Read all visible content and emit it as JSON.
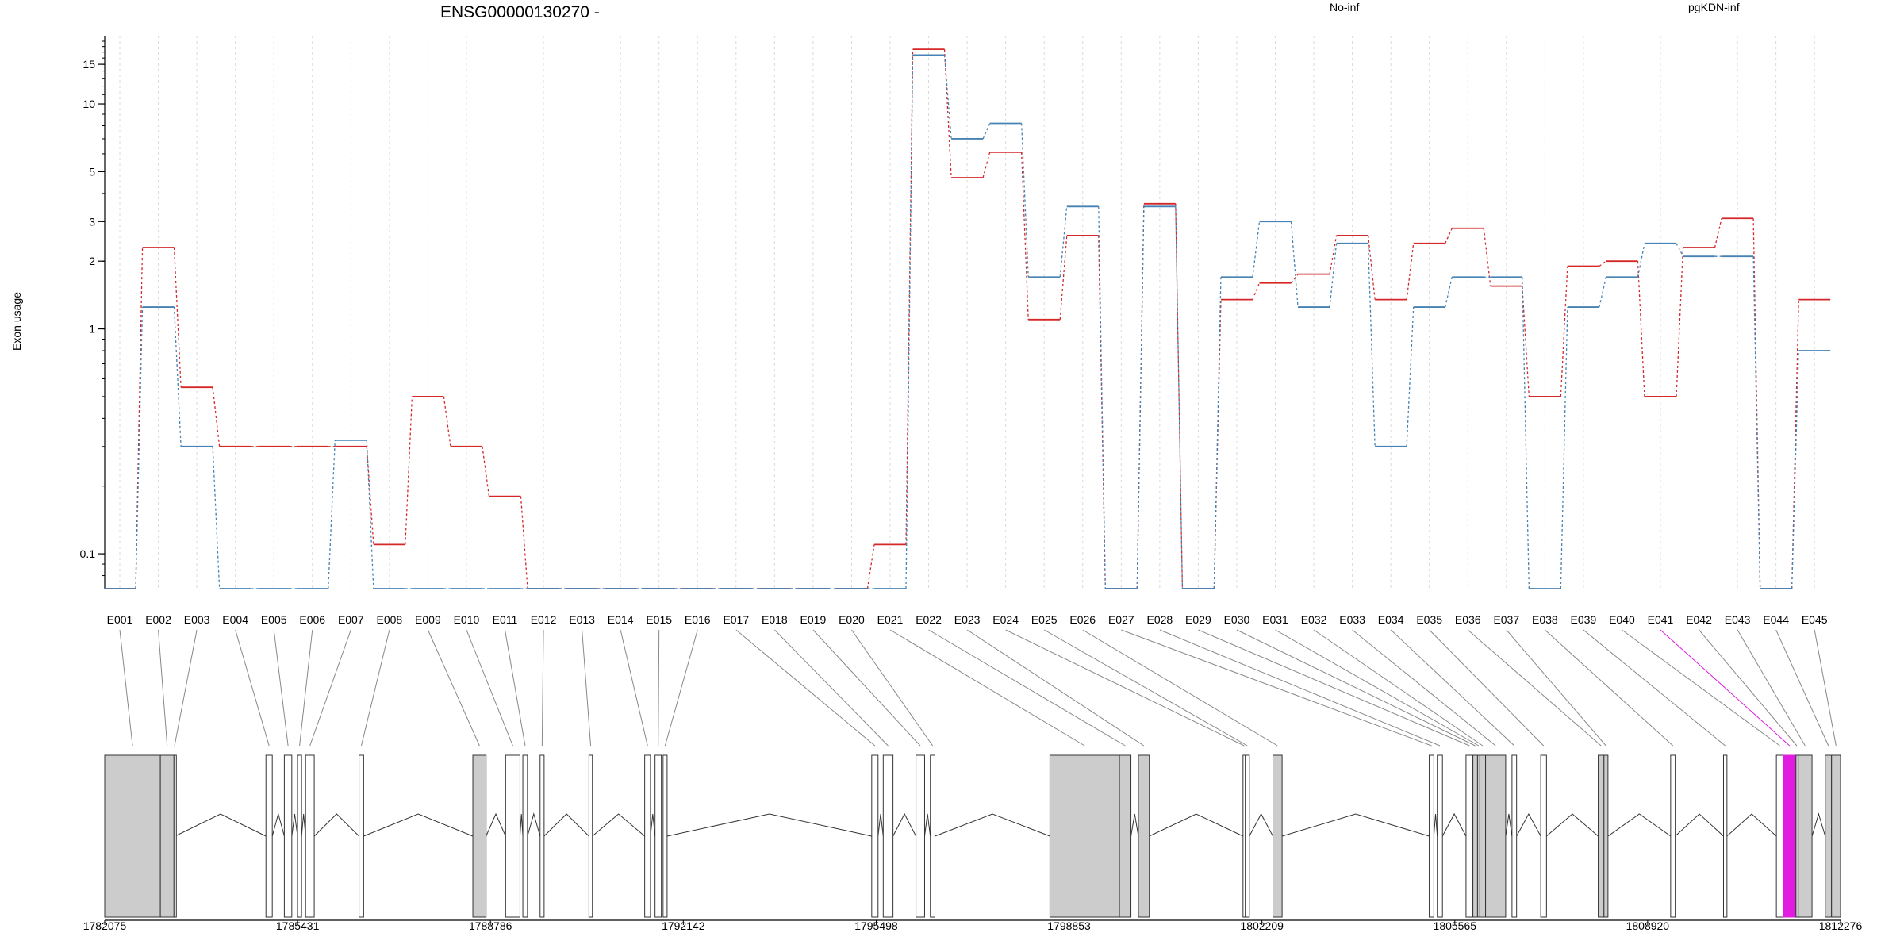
{
  "chart_data": {
    "type": "line",
    "title": "ENSG00000130270 -",
    "ylabel": "Exon usage",
    "xlabel": "",
    "y_scale": "log",
    "ylim": [
      0.07,
      19
    ],
    "y_ticks": [
      0.1,
      1,
      2,
      3,
      5,
      10,
      15
    ],
    "y_tick_labels": [
      "0.1",
      "1",
      "2",
      "3",
      "5",
      "10",
      "15"
    ],
    "grid": "vertical dotted lines at each exon",
    "legend_position": "top",
    "categories": [
      "E001",
      "E002",
      "E003",
      "E004",
      "E005",
      "E006",
      "E007",
      "E008",
      "E009",
      "E010",
      "E011",
      "E012",
      "E013",
      "E014",
      "E015",
      "E016",
      "E017",
      "E018",
      "E019",
      "E020",
      "E021",
      "E022",
      "E023",
      "E024",
      "E025",
      "E026",
      "E027",
      "E028",
      "E029",
      "E030",
      "E031",
      "E032",
      "E033",
      "E034",
      "E035",
      "E036",
      "E037",
      "E038",
      "E039",
      "E040",
      "E041",
      "E042",
      "E043",
      "E044",
      "E045"
    ],
    "series": [
      {
        "name": "No-inf",
        "color": "#d62728",
        "values": [
          0.07,
          2.3,
          0.55,
          0.3,
          0.3,
          0.3,
          0.3,
          0.11,
          0.5,
          0.3,
          0.18,
          0.07,
          0.07,
          0.07,
          0.07,
          0.07,
          0.07,
          0.07,
          0.07,
          0.07,
          0.11,
          17.5,
          4.7,
          6.1,
          1.1,
          2.6,
          0.07,
          3.6,
          0.07,
          1.35,
          1.6,
          1.75,
          2.6,
          1.35,
          2.4,
          2.8,
          1.55,
          0.5,
          1.9,
          2.0,
          0.5,
          2.3,
          3.1,
          0.07,
          1.35
        ]
      },
      {
        "name": "pgKDN-inf",
        "color": "#4682b4",
        "values": [
          0.07,
          1.25,
          0.3,
          0.07,
          0.07,
          0.07,
          0.32,
          0.07,
          0.07,
          0.07,
          0.07,
          0.07,
          0.07,
          0.07,
          0.07,
          0.07,
          0.07,
          0.07,
          0.07,
          0.07,
          0.07,
          16.5,
          7.0,
          8.2,
          1.7,
          3.5,
          0.07,
          3.5,
          0.07,
          1.7,
          3.0,
          1.25,
          2.4,
          0.3,
          1.25,
          1.7,
          1.7,
          0.07,
          1.25,
          1.7,
          2.4,
          2.1,
          2.1,
          0.07,
          0.8
        ]
      }
    ],
    "genomic_axis": {
      "tick_labels": [
        "1782075",
        "1785431",
        "1788786",
        "1792142",
        "1795498",
        "1798853",
        "1802209",
        "1805565",
        "1808920",
        "1812276"
      ],
      "range": [
        1782075,
        1812276
      ]
    },
    "highlighted_exon": "E041",
    "highlight_color": "#e11be0"
  }
}
